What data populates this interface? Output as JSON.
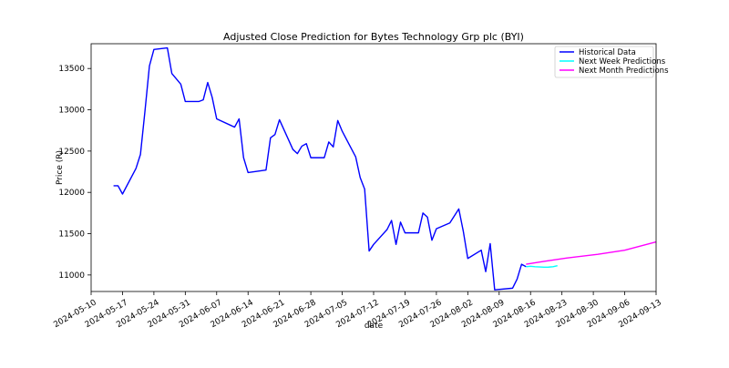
{
  "chart_data": {
    "type": "line",
    "title": "Adjusted Close Prediction for Bytes Technology Grp plc (BYI)",
    "xlabel": "date",
    "ylabel": "Price (R)",
    "x_axis_type": "date",
    "xlim": [
      "2024-05-10",
      "2024-09-13"
    ],
    "ylim": [
      10800,
      13800
    ],
    "x_ticks": [
      "2024-05-10",
      "2024-05-17",
      "2024-05-24",
      "2024-05-31",
      "2024-06-07",
      "2024-06-14",
      "2024-06-21",
      "2024-06-28",
      "2024-07-05",
      "2024-07-12",
      "2024-07-19",
      "2024-07-26",
      "2024-08-02",
      "2024-08-09",
      "2024-08-16",
      "2024-08-23",
      "2024-08-30",
      "2024-09-06",
      "2024-09-13"
    ],
    "y_ticks": [
      11000,
      11500,
      12000,
      12500,
      13000,
      13500
    ],
    "grid": false,
    "legend_position": "top-right",
    "series": [
      {
        "name": "Historical Data",
        "color": "#0000ff",
        "points": [
          [
            "2024-05-15",
            12080
          ],
          [
            "2024-05-16",
            12080
          ],
          [
            "2024-05-17",
            11980
          ],
          [
            "2024-05-20",
            12290
          ],
          [
            "2024-05-21",
            12460
          ],
          [
            "2024-05-22",
            12980
          ],
          [
            "2024-05-23",
            13530
          ],
          [
            "2024-05-24",
            13730
          ],
          [
            "2024-05-27",
            13750
          ],
          [
            "2024-05-28",
            13440
          ],
          [
            "2024-05-30",
            13310
          ],
          [
            "2024-05-31",
            13100
          ],
          [
            "2024-06-03",
            13100
          ],
          [
            "2024-06-04",
            13120
          ],
          [
            "2024-06-05",
            13330
          ],
          [
            "2024-06-06",
            13150
          ],
          [
            "2024-06-07",
            12890
          ],
          [
            "2024-06-11",
            12790
          ],
          [
            "2024-06-12",
            12890
          ],
          [
            "2024-06-13",
            12420
          ],
          [
            "2024-06-14",
            12240
          ],
          [
            "2024-06-18",
            12270
          ],
          [
            "2024-06-19",
            12660
          ],
          [
            "2024-06-20",
            12700
          ],
          [
            "2024-06-21",
            12880
          ],
          [
            "2024-06-24",
            12520
          ],
          [
            "2024-06-25",
            12470
          ],
          [
            "2024-06-26",
            12560
          ],
          [
            "2024-06-27",
            12590
          ],
          [
            "2024-06-28",
            12420
          ],
          [
            "2024-07-01",
            12420
          ],
          [
            "2024-07-02",
            12610
          ],
          [
            "2024-07-03",
            12550
          ],
          [
            "2024-07-04",
            12870
          ],
          [
            "2024-07-05",
            12740
          ],
          [
            "2024-07-08",
            12430
          ],
          [
            "2024-07-09",
            12180
          ],
          [
            "2024-07-10",
            12040
          ],
          [
            "2024-07-11",
            11290
          ],
          [
            "2024-07-12",
            11370
          ],
          [
            "2024-07-15",
            11550
          ],
          [
            "2024-07-16",
            11660
          ],
          [
            "2024-07-17",
            11370
          ],
          [
            "2024-07-18",
            11640
          ],
          [
            "2024-07-19",
            11510
          ],
          [
            "2024-07-22",
            11510
          ],
          [
            "2024-07-23",
            11750
          ],
          [
            "2024-07-24",
            11700
          ],
          [
            "2024-07-25",
            11420
          ],
          [
            "2024-07-26",
            11560
          ],
          [
            "2024-07-29",
            11630
          ],
          [
            "2024-07-31",
            11800
          ],
          [
            "2024-08-01",
            11530
          ],
          [
            "2024-08-02",
            11200
          ],
          [
            "2024-08-05",
            11300
          ],
          [
            "2024-08-06",
            11040
          ],
          [
            "2024-08-07",
            11380
          ],
          [
            "2024-08-08",
            10820
          ],
          [
            "2024-08-12",
            10840
          ],
          [
            "2024-08-13",
            10950
          ],
          [
            "2024-08-14",
            11130
          ],
          [
            "2024-08-15",
            11100
          ]
        ]
      },
      {
        "name": "Next Week Predictions",
        "color": "#00ffff",
        "points": [
          [
            "2024-08-15",
            11100
          ],
          [
            "2024-08-16",
            11105
          ],
          [
            "2024-08-17",
            11100
          ],
          [
            "2024-08-18",
            11097
          ],
          [
            "2024-08-19",
            11094
          ],
          [
            "2024-08-20",
            11095
          ],
          [
            "2024-08-21",
            11100
          ],
          [
            "2024-08-22",
            11112
          ]
        ]
      },
      {
        "name": "Next Month Predictions",
        "color": "#ff00ff",
        "points": [
          [
            "2024-08-15",
            11130
          ],
          [
            "2024-08-19",
            11165
          ],
          [
            "2024-08-24",
            11205
          ],
          [
            "2024-08-31",
            11250
          ],
          [
            "2024-09-06",
            11300
          ],
          [
            "2024-09-13",
            11400
          ]
        ]
      }
    ]
  }
}
